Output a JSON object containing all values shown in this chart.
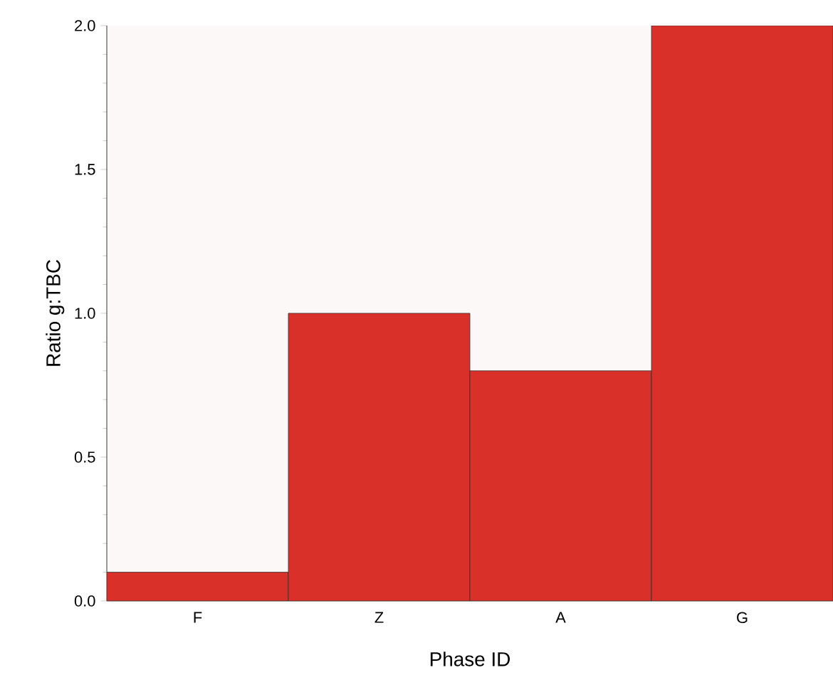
{
  "chart_data": {
    "type": "bar",
    "xlabel": "Phase ID",
    "ylabel": "Ratio g:TBC",
    "categories": [
      "F",
      "Z",
      "A",
      "G"
    ],
    "values": [
      0.1,
      1.0,
      0.8,
      2.0
    ],
    "color": "#d9302a",
    "ylim": [
      0,
      2.0
    ],
    "yticks": [
      {
        "value": 0,
        "label": "0.0"
      },
      {
        "value": 0.5,
        "label": "0.5"
      },
      {
        "value": 1.0,
        "label": "1.0"
      },
      {
        "value": 1.5,
        "label": "1.5"
      },
      {
        "value": 2.0,
        "label": "2.0"
      }
    ],
    "tick_labels": "xy"
  }
}
